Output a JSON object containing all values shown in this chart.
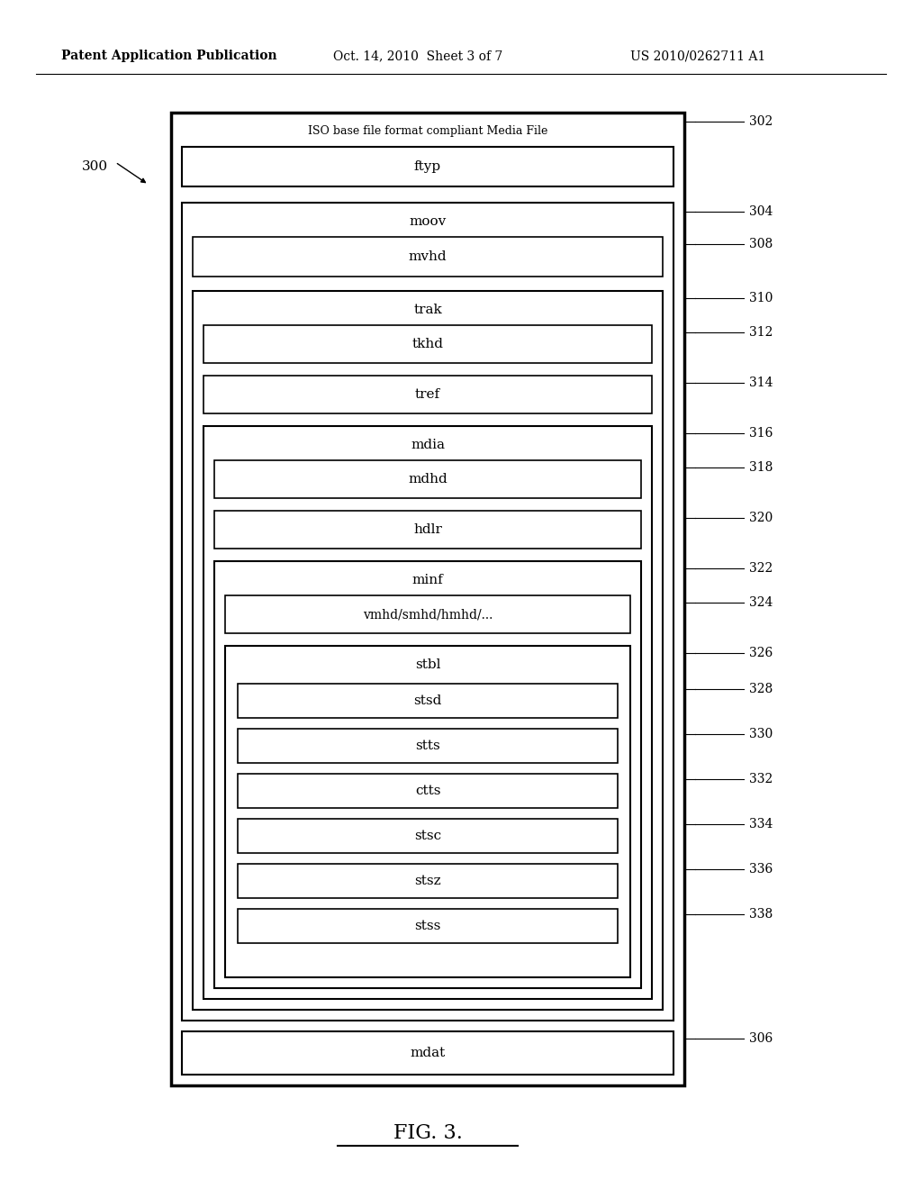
{
  "header_left": "Patent Application Publication",
  "header_mid": "Oct. 14, 2010  Sheet 3 of 7",
  "header_right": "US 2010/0262711 A1",
  "fig_label": "FIG. 3.",
  "main_label": "300",
  "title_text": "ISO base file format compliant Media File",
  "bg_color": "#ffffff",
  "box_edge_color": "#000000",
  "text_color": "#000000"
}
